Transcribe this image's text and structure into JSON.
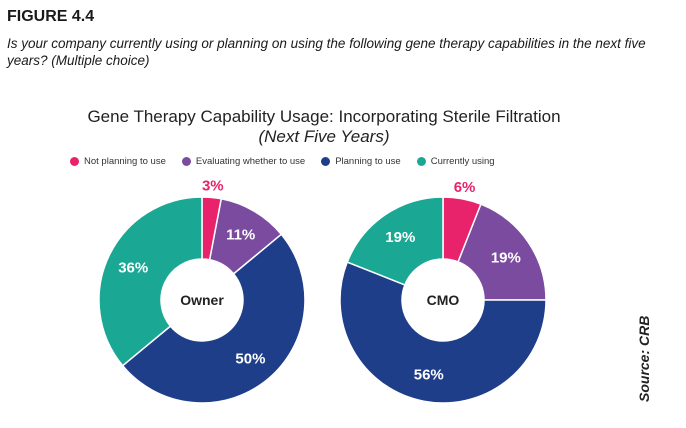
{
  "figure_label": "FIGURE 4.4",
  "question": "Is your company currently using or planning on using the following gene therapy capabilities in the next five years? (Multiple choice)",
  "source": "Source: CRB",
  "colors": {
    "Not planning to use": "#e8236b",
    "Evaluating whether to use": "#7b4ba0",
    "Planning to use": "#1f3e8a",
    "Currently using": "#1aa894"
  },
  "chart_data": {
    "type": "pie",
    "title": "Gene Therapy Capability Usage: Incorporating Sterile Filtration",
    "subtitle": "(Next Five Years)",
    "legend_position": "top",
    "categories": [
      "Not planning to use",
      "Evaluating whether to use",
      "Planning to use",
      "Currently using"
    ],
    "series": [
      {
        "name": "Owner",
        "values": [
          3,
          11,
          50,
          36
        ]
      },
      {
        "name": "CMO",
        "values": [
          6,
          19,
          56,
          19
        ]
      }
    ]
  }
}
